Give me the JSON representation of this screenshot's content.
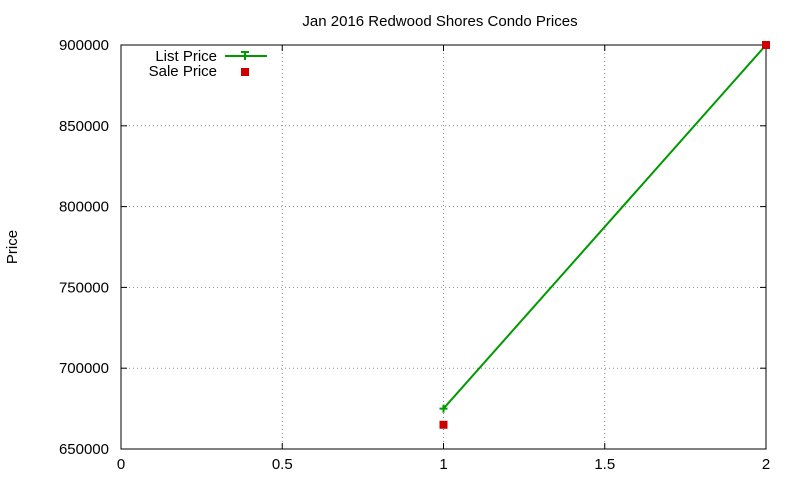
{
  "chart_data": {
    "type": "line",
    "title": "Jan 2016 Redwood Shores Condo Prices",
    "xlabel": "",
    "ylabel": "Price",
    "xlim": [
      0,
      2
    ],
    "ylim": [
      650000,
      900000
    ],
    "x_ticks": [
      "0",
      "0.5",
      "1",
      "1.5",
      "2"
    ],
    "y_ticks": [
      "650000",
      "700000",
      "750000",
      "800000",
      "850000",
      "900000"
    ],
    "grid": true,
    "legend_position": "top-left",
    "series": [
      {
        "name": "List Price",
        "style": "line+plus-markers",
        "color": "#009900",
        "x": [
          1,
          2
        ],
        "y": [
          675000,
          900000
        ]
      },
      {
        "name": "Sale Price",
        "style": "square-markers",
        "color": "#cc0000",
        "x": [
          1,
          2
        ],
        "y": [
          665000,
          900000
        ]
      }
    ]
  }
}
